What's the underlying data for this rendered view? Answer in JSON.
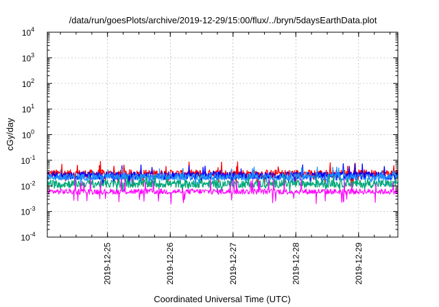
{
  "chart_data": {
    "type": "line",
    "title": "/data/run/goesPlots/archive/2019-12-29/15:00/flux/../bryn/5daysEarthData.plot",
    "xlabel": "Coordinated Universal Time (UTC)",
    "ylabel": "cGy/day",
    "yscale": "log",
    "ylim": [
      0.0001,
      10000
    ],
    "yticks": [
      {
        "value": 0.0001,
        "base": "10",
        "exp": "-4"
      },
      {
        "value": 0.001,
        "base": "10",
        "exp": "-3"
      },
      {
        "value": 0.01,
        "base": "10",
        "exp": "-2"
      },
      {
        "value": 0.1,
        "base": "10",
        "exp": "-1"
      },
      {
        "value": 1,
        "base": "10",
        "exp": "0"
      },
      {
        "value": 10,
        "base": "10",
        "exp": "1"
      },
      {
        "value": 100,
        "base": "10",
        "exp": "2"
      },
      {
        "value": 1000,
        "base": "10",
        "exp": "3"
      },
      {
        "value": 10000,
        "base": "10",
        "exp": "4"
      }
    ],
    "xlim": [
      "2019-12-24T01:00",
      "2019-12-29T15:00"
    ],
    "xticks": [
      {
        "value": "2019-12-25T00:00",
        "label": "2019-12-25"
      },
      {
        "value": "2019-12-26T00:00",
        "label": "2019-12-26"
      },
      {
        "value": "2019-12-27T00:00",
        "label": "2019-12-27"
      },
      {
        "value": "2019-12-28T00:00",
        "label": "2019-12-28"
      },
      {
        "value": "2019-12-29T00:00",
        "label": "2019-12-29"
      }
    ],
    "grid": true,
    "series": [
      {
        "color": "#ff0000",
        "base": 0.03,
        "noise": 0.35,
        "spike": 0.8
      },
      {
        "color": "#0000ff",
        "base": 0.025,
        "noise": 0.35,
        "spike": 0.6
      },
      {
        "color": "#1e90ff",
        "base": 0.022,
        "noise": 0.3,
        "spike": 0.5
      },
      {
        "color": "#00a878",
        "base": 0.012,
        "noise": 0.35,
        "spike": 0.4
      },
      {
        "color": "#ff00ff",
        "base": 0.006,
        "noise": 0.25,
        "spike": 0.9
      }
    ]
  }
}
